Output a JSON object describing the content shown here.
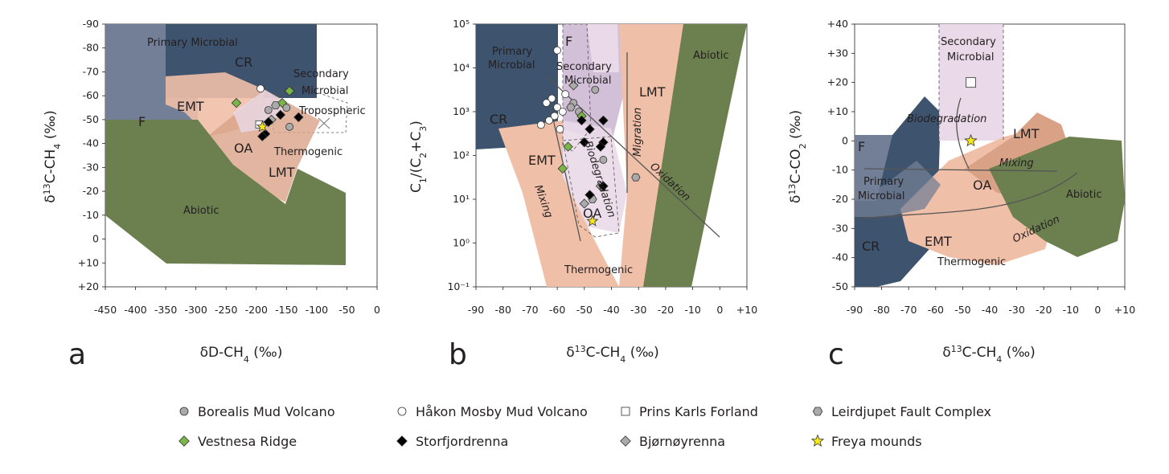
{
  "colors": {
    "slate": "#3e536e",
    "slate_light": "#737f96",
    "green": "#6b7f4f",
    "peach": "#f0bfa7",
    "peach_dark": "#d9a287",
    "lilac": "#ead9e8",
    "lilac_dark": "#d2c0d8",
    "marker_green": "#7ab545",
    "marker_black": "#000000",
    "marker_grey": "#aaaaaa",
    "marker_star": "#f4e71c"
  },
  "chart_data": [
    {
      "panel": "a",
      "type": "scatter",
      "xlabel": "δD-CH4 (‰)",
      "ylabel": "δ13C-CH4 (‰)",
      "x_ticks": [
        "-450",
        "-400",
        "-350",
        "-300",
        "-250",
        "-200",
        "-150",
        "-100",
        "-50",
        "0"
      ],
      "y_ticks": [
        "-90",
        "-80",
        "-70",
        "-60",
        "-50",
        "-40",
        "-30",
        "-20",
        "-10",
        "0",
        "+10",
        "+20"
      ],
      "xlim": [
        -450,
        0
      ],
      "ylim": [
        -90,
        20
      ],
      "regions": [
        "F",
        "Primary Microbial",
        "CR",
        "Secondary Microbial",
        "EMT",
        "Tropospheric",
        "OA",
        "Thermogenic",
        "LMT",
        "Abiotic"
      ],
      "points": [
        {
          "series": "Håkon Mosby Mud Volcano",
          "x": -193,
          "y": -63
        },
        {
          "series": "Vestnesa Ridge",
          "x": -233,
          "y": -57
        },
        {
          "series": "Vestnesa Ridge",
          "x": -145,
          "y": -62
        },
        {
          "series": "Vestnesa Ridge",
          "x": -157,
          "y": -57
        },
        {
          "series": "Borealis Mud Volcano",
          "x": -180,
          "y": -54
        },
        {
          "series": "Borealis Mud Volcano",
          "x": -150,
          "y": -55
        },
        {
          "series": "Borealis Mud Volcano",
          "x": -145,
          "y": -47
        },
        {
          "series": "Leirdjupet Fault Complex",
          "x": -168,
          "y": -56
        },
        {
          "series": "Bjørnøyrenna",
          "x": -175,
          "y": -50
        },
        {
          "series": "Storfjordrenna",
          "x": -160,
          "y": -52
        },
        {
          "series": "Storfjordrenna",
          "x": -130,
          "y": -51
        },
        {
          "series": "Storfjordrenna",
          "x": -180,
          "y": -49
        },
        {
          "series": "Storfjordrenna",
          "x": -185,
          "y": -44
        },
        {
          "series": "Storfjordrenna",
          "x": -190,
          "y": -43
        },
        {
          "series": "Prins Karls Forland",
          "x": -195,
          "y": -48
        },
        {
          "series": "Freya mounds",
          "x": -190,
          "y": -47
        }
      ]
    },
    {
      "panel": "b",
      "type": "scatter",
      "xlabel": "δ13C-CH4 (‰)",
      "ylabel": "C1/(C2+C3)",
      "x_ticks": [
        "-90",
        "-80",
        "-70",
        "-60",
        "-50",
        "-40",
        "-30",
        "-20",
        "-10",
        "0",
        "+10"
      ],
      "y_ticks": [
        "10⁵",
        "10⁴",
        "10³",
        "10²",
        "10¹",
        "10⁰",
        "10⁻¹"
      ],
      "xlim": [
        -90,
        10
      ],
      "ylim_log10": [
        -1,
        5
      ],
      "regions": [
        "Primary Microbial",
        "F",
        "Secondary Microbial",
        "CR",
        "LMT",
        "EMT",
        "OA",
        "Thermogenic",
        "Abiotic"
      ],
      "process_arrows": [
        "Mixing",
        "Biodegradation",
        "Migration",
        "Oxidation"
      ],
      "points": [
        {
          "series": "Håkon Mosby Mud Volcano",
          "x": -60,
          "log_y": 4.4
        },
        {
          "series": "Håkon Mosby Mud Volcano",
          "x": -62,
          "log_y": 3.3
        },
        {
          "series": "Håkon Mosby Mud Volcano",
          "x": -64,
          "log_y": 3.2
        },
        {
          "series": "Håkon Mosby Mud Volcano",
          "x": -60,
          "log_y": 3.1
        },
        {
          "series": "Håkon Mosby Mud Volcano",
          "x": -58,
          "log_y": 3.0
        },
        {
          "series": "Håkon Mosby Mud Volcano",
          "x": -61,
          "log_y": 2.9
        },
        {
          "series": "Håkon Mosby Mud Volcano",
          "x": -63,
          "log_y": 2.8
        },
        {
          "series": "Håkon Mosby Mud Volcano",
          "x": -66,
          "log_y": 2.7
        },
        {
          "series": "Håkon Mosby Mud Volcano",
          "x": -59,
          "log_y": 2.6
        },
        {
          "series": "Håkon Mosby Mud Volcano",
          "x": -57,
          "log_y": 3.4
        },
        {
          "series": "Borealis Mud Volcano",
          "x": -54,
          "log_y": 3.2
        },
        {
          "series": "Borealis Mud Volcano",
          "x": -52,
          "log_y": 3.0
        },
        {
          "series": "Borealis Mud Volcano",
          "x": -46,
          "log_y": 3.5
        },
        {
          "series": "Borealis Mud Volcano",
          "x": -43,
          "log_y": 1.9
        },
        {
          "series": "Leirdjupet Fault Complex",
          "x": -55,
          "log_y": 3.1
        },
        {
          "series": "Leirdjupet Fault Complex",
          "x": -31,
          "log_y": 1.5
        },
        {
          "series": "Leirdjupet Fault Complex",
          "x": -47,
          "log_y": 1.0
        },
        {
          "series": "Bjørnøyrenna",
          "x": -54,
          "log_y": 3.6
        },
        {
          "series": "Bjørnøyrenna",
          "x": -50,
          "log_y": 0.9
        },
        {
          "series": "Bjørnøyrenna",
          "x": -44,
          "log_y": 1.3
        },
        {
          "series": "Vestnesa Ridge",
          "x": -51,
          "log_y": 2.9
        },
        {
          "series": "Vestnesa Ridge",
          "x": -56,
          "log_y": 2.2
        },
        {
          "series": "Vestnesa Ridge",
          "x": -58,
          "log_y": 1.7
        },
        {
          "series": "Storfjordrenna",
          "x": -51,
          "log_y": 2.8
        },
        {
          "series": "Storfjordrenna",
          "x": -48,
          "log_y": 2.6
        },
        {
          "series": "Storfjordrenna",
          "x": -43,
          "log_y": 2.8
        },
        {
          "series": "Storfjordrenna",
          "x": -43,
          "log_y": 2.3
        },
        {
          "series": "Storfjordrenna",
          "x": -44,
          "log_y": 2.2
        },
        {
          "series": "Storfjordrenna",
          "x": -50,
          "log_y": 2.3
        },
        {
          "series": "Storfjordrenna",
          "x": -43,
          "log_y": 1.3
        },
        {
          "series": "Storfjordrenna",
          "x": -48,
          "log_y": 1.1
        },
        {
          "series": "Freya mounds",
          "x": -47,
          "log_y": 0.5
        }
      ]
    },
    {
      "panel": "c",
      "type": "scatter",
      "xlabel": "δ13C-CH4 (‰)",
      "ylabel": "δ13C-CO2 (‰)",
      "x_ticks": [
        "-90",
        "-80",
        "-70",
        "-60",
        "-50",
        "-40",
        "-30",
        "-20",
        "-10",
        "0",
        "+10"
      ],
      "y_ticks": [
        "+40",
        "+30",
        "+20",
        "+10",
        "0",
        "-10",
        "-20",
        "-30",
        "-40",
        "-50"
      ],
      "xlim": [
        -90,
        10
      ],
      "ylim": [
        -50,
        40
      ],
      "regions": [
        "Secondary Microbial",
        "F",
        "LMT",
        "Primary Microbial",
        "OA",
        "Abiotic",
        "CR",
        "EMT",
        "Thermogenic"
      ],
      "process_arrows": [
        "Biodegradation",
        "Mixing",
        "Oxidation"
      ],
      "points": [
        {
          "series": "Prins Karls Forland",
          "x": -47,
          "y": 20
        },
        {
          "series": "Freya mounds",
          "x": -47,
          "y": 0
        }
      ]
    }
  ],
  "panel_letters": [
    "a",
    "b",
    "c"
  ],
  "labels": {
    "a": {
      "ylabel_main": "δ",
      "ylabel_sup": "13",
      "ylabel_rest": "C-CH",
      "ylabel_sub": "4",
      "ylabel_end": " (‰)",
      "xlabel_main": "δD-CH",
      "xlabel_sub": "4",
      "xlabel_end": " (‰)",
      "region_F": "F",
      "region_primary": "Primary Microbial",
      "region_CR": "CR",
      "region_secondary_1": "Secondary",
      "region_secondary_2": "Microbial",
      "region_EMT": "EMT",
      "region_tropo": "Tropospheric",
      "region_OA": "OA",
      "region_thermo": "Thermogenic",
      "region_LMT": "LMT",
      "region_abiotic": "Abiotic"
    },
    "b": {
      "ylabel_a": "C",
      "ylabel_s1": "1",
      "ylabel_b": "/(C",
      "ylabel_s2": "2",
      "ylabel_c": "+C",
      "ylabel_s3": "3",
      "ylabel_d": ")",
      "xlabel_main": "δ",
      "xlabel_sup": "13",
      "xlabel_rest": "C-CH",
      "xlabel_sub": "4",
      "xlabel_end": " (‰)",
      "region_primary_1": "Primary",
      "region_primary_2": "Microbial",
      "region_F": "F",
      "region_secondary_1": "Secondary",
      "region_secondary_2": "Microbial",
      "region_CR": "CR",
      "region_LMT": "LMT",
      "region_EMT": "EMT",
      "region_OA": "OA",
      "region_thermo": "Thermogenic",
      "region_abiotic": "Abiotic",
      "proc_mixing": "Mixing",
      "proc_biodeg": "Biodegradation",
      "proc_migration": "Migration",
      "proc_oxidation": "Oxidation"
    },
    "c": {
      "ylabel_main": "δ",
      "ylabel_sup": "13",
      "ylabel_rest": "C-CO",
      "ylabel_sub": "2",
      "ylabel_end": " (‰)",
      "xlabel_main": "δ",
      "xlabel_sup": "13",
      "xlabel_rest": "C-CH",
      "xlabel_sub": "4",
      "xlabel_end": " (‰)",
      "region_secondary_1": "Secondary",
      "region_secondary_2": "Microbial",
      "region_F": "F",
      "region_LMT": "LMT",
      "region_primary_1": "Primary",
      "region_primary_2": "Microbial",
      "region_OA": "OA",
      "region_abiotic": "Abiotic",
      "region_CR": "CR",
      "region_EMT": "EMT",
      "region_thermo": "Thermogenic",
      "proc_biodeg": "Biodegradation",
      "proc_mixing": "Mixing",
      "proc_oxidation": "Oxidation"
    }
  },
  "legend": [
    {
      "label": "Borealis Mud Volcano",
      "marker": "circle",
      "fill": "#aaaaaa"
    },
    {
      "label": "Håkon Mosby Mud Volcano",
      "marker": "circle",
      "fill": "#ffffff"
    },
    {
      "label": "Prins Karls Forland",
      "marker": "square",
      "fill": "#ffffff"
    },
    {
      "label": "Leirdjupet Fault Complex",
      "marker": "hexagon",
      "fill": "#aaaaaa"
    },
    {
      "label": "Vestnesa Ridge",
      "marker": "diamond",
      "fill": "#7ab545"
    },
    {
      "label": "Storfjordrenna",
      "marker": "diamond",
      "fill": "#000000"
    },
    {
      "label": "Bjørnøyrenna",
      "marker": "diamond",
      "fill": "#aaaaaa"
    },
    {
      "label": "Freya mounds",
      "marker": "star",
      "fill": "#f4e71c"
    }
  ]
}
